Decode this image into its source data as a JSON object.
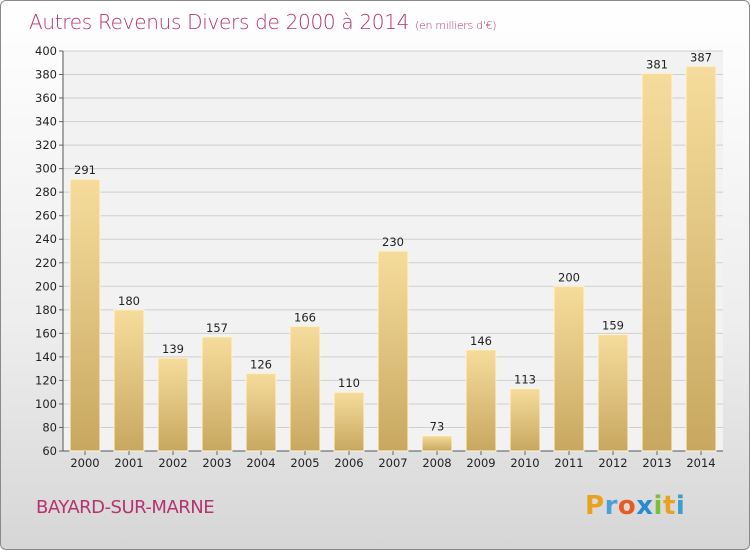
{
  "title": "Autres Revenus Divers de 2000 à 2014",
  "unit": "(en milliers d'€)",
  "commune": "BAYARD-SUR-MARNE",
  "logo": {
    "letters": [
      "P",
      "r",
      "o",
      "x",
      "i",
      "t",
      "i"
    ],
    "colors": [
      "#e8a220",
      "#4aa0d8",
      "#e85a20",
      "#2a8ad0",
      "#7bbf3a",
      "#e8a220",
      "#3aa0c8"
    ]
  },
  "colors": {
    "accent": "#b5336f",
    "bar_light": "#f6dc9c",
    "bar_dark": "#c8a860",
    "grid": "#cfcfcf"
  },
  "chart_data": {
    "type": "bar",
    "title": "Autres Revenus Divers de 2000 à 2014",
    "subtitle": "(en milliers d'€)",
    "xlabel": "",
    "ylabel": "",
    "categories": [
      "2000",
      "2001",
      "2002",
      "2003",
      "2004",
      "2005",
      "2006",
      "2007",
      "2008",
      "2009",
      "2010",
      "2011",
      "2012",
      "2013",
      "2014"
    ],
    "values": [
      291,
      180,
      139,
      157,
      126,
      166,
      110,
      230,
      73,
      146,
      113,
      200,
      159,
      381,
      387
    ],
    "ylim": [
      60,
      400
    ],
    "yticks": [
      60,
      80,
      100,
      120,
      140,
      160,
      180,
      200,
      220,
      240,
      260,
      280,
      300,
      320,
      340,
      360,
      380,
      400
    ],
    "grid": true,
    "legend": "none"
  }
}
